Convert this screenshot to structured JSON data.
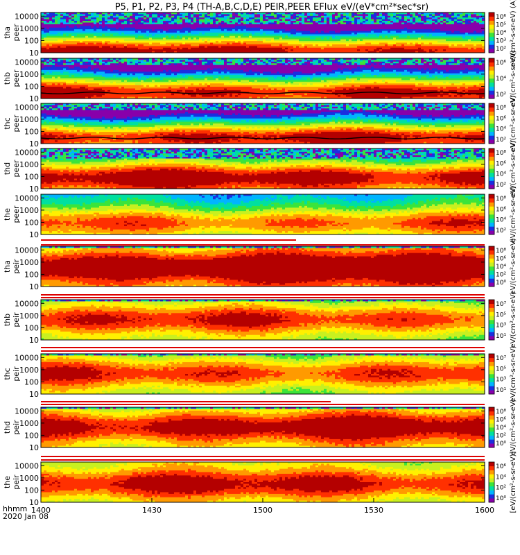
{
  "title": "P5, P1, P2, P3, P4 (TH-A,B,C,D,E) PEIR,PEER EFlux eV/(eV*cm²*sec*sr)",
  "chart_data": {
    "type": "heatmap",
    "title": "P5, P1, P2, P3, P4 (TH-A,B,C,D,E) PEIR,PEER EFlux eV/(eV*cm²*sec*sr)",
    "x_axis": {
      "label_line1": "hhmm",
      "label_line2": "2020 Jan 08",
      "range_minutes": [
        0,
        120
      ],
      "ticks": [
        {
          "minute": 0,
          "label": "1400"
        },
        {
          "minute": 30,
          "label": "1430"
        },
        {
          "minute": 60,
          "label": "1500"
        },
        {
          "minute": 90,
          "label": "1530"
        },
        {
          "minute": 120,
          "label": "1600"
        }
      ]
    },
    "y_scale": "log",
    "y_range": [
      10,
      20000
    ],
    "y_ticks": [
      "10000",
      "1000",
      "100",
      "10"
    ],
    "colorbar_colors": [
      "#8800aa",
      "#1a2fe0",
      "#00b4ff",
      "#00e0a0",
      "#3be43b",
      "#c8f020",
      "#fff000",
      "#ff9a00",
      "#ff3000",
      "#b40000"
    ],
    "panels": [
      {
        "probe": "tha",
        "product": "peer",
        "cbar_ticks": [
          "10⁶",
          "10⁵",
          "10⁴",
          "10³",
          "10²"
        ],
        "cbar_unit": "eV/(cm²-s-sr-eV) (A)",
        "base": 0.55,
        "slope": 0.3,
        "peak_log": 1.25,
        "noise_edge": 3.4,
        "has_potential_line": false
      },
      {
        "probe": "thb",
        "product": "peer",
        "cbar_ticks": [
          "10⁶",
          "10⁴",
          "10²"
        ],
        "cbar_unit": "eV/(cm²-s-sr-eV)",
        "base": 0.55,
        "slope": 0.28,
        "peak_log": 1.6,
        "noise_edge": 3.8,
        "has_potential_line": true
      },
      {
        "probe": "thc",
        "product": "peer",
        "cbar_ticks": [
          "10⁸",
          "10⁶",
          "10⁴",
          "10²"
        ],
        "cbar_unit": "eV/(cm²-s-sr-eV)",
        "base": 0.55,
        "slope": 0.28,
        "peak_log": 1.6,
        "noise_edge": 3.8,
        "has_potential_line": true
      },
      {
        "probe": "thd",
        "product": "peer",
        "cbar_ticks": [
          "10⁸",
          "10⁶",
          "10⁴",
          "10²"
        ],
        "cbar_unit": "eV/(cm²-s-sr-eV)",
        "base": 0.6,
        "slope": 0.18,
        "peak_log": 2.0,
        "noise_edge": 3.5,
        "has_potential_line": false
      },
      {
        "probe": "the",
        "product": "peer",
        "cbar_ticks": [
          "10⁸",
          "10⁶",
          "10⁴",
          "10²"
        ],
        "cbar_unit": "eV/(cm²-s-sr-eV)",
        "base": 0.45,
        "slope": 0.08,
        "peak_log": 2.0,
        "noise_edge": 9,
        "has_potential_line": false
      },
      {
        "probe": "tha",
        "product": "peir",
        "cbar_ticks": [
          "10⁸",
          "10⁶",
          "10⁴",
          "10²",
          "10⁰"
        ],
        "cbar_unit": "eV/(cm²-s-sr-eV)",
        "base": 0.72,
        "slope": 0.05,
        "peak_log": 2.6,
        "noise_edge": 4.2,
        "has_potential_line": false
      },
      {
        "probe": "thb",
        "product": "peir",
        "cbar_ticks": [
          "10⁷",
          "10⁵",
          "10³",
          "10¹"
        ],
        "cbar_unit": "eV/(cm²-s-sr-eV)",
        "base": 0.5,
        "slope": 0.03,
        "peak_log": 2.7,
        "noise_edge": 4.2,
        "has_potential_line": false
      },
      {
        "probe": "thc",
        "product": "peir",
        "cbar_ticks": [
          "10⁷",
          "10⁵",
          "10³",
          "10¹"
        ],
        "cbar_unit": "eV/(cm²-s-sr-eV)",
        "base": 0.5,
        "slope": 0.03,
        "peak_log": 2.7,
        "noise_edge": 4.2,
        "has_potential_line": false
      },
      {
        "probe": "thd",
        "product": "peir",
        "cbar_ticks": [
          "10⁸",
          "10⁶",
          "10⁴",
          "10²",
          "10⁰"
        ],
        "cbar_unit": "eV/(cm²-s-sr-eV)",
        "base": 0.62,
        "slope": 0.04,
        "peak_log": 2.7,
        "noise_edge": 4.2,
        "has_potential_line": false
      },
      {
        "probe": "the",
        "product": "peir",
        "cbar_ticks": [
          "10⁶",
          "10⁴",
          "10²",
          "10⁰"
        ],
        "cbar_unit": "[eV/(cm²-s-sr-eV)]",
        "base": 0.55,
        "slope": 0.0,
        "peak_log": 2.5,
        "noise_edge": 9,
        "has_potential_line": false
      }
    ]
  }
}
